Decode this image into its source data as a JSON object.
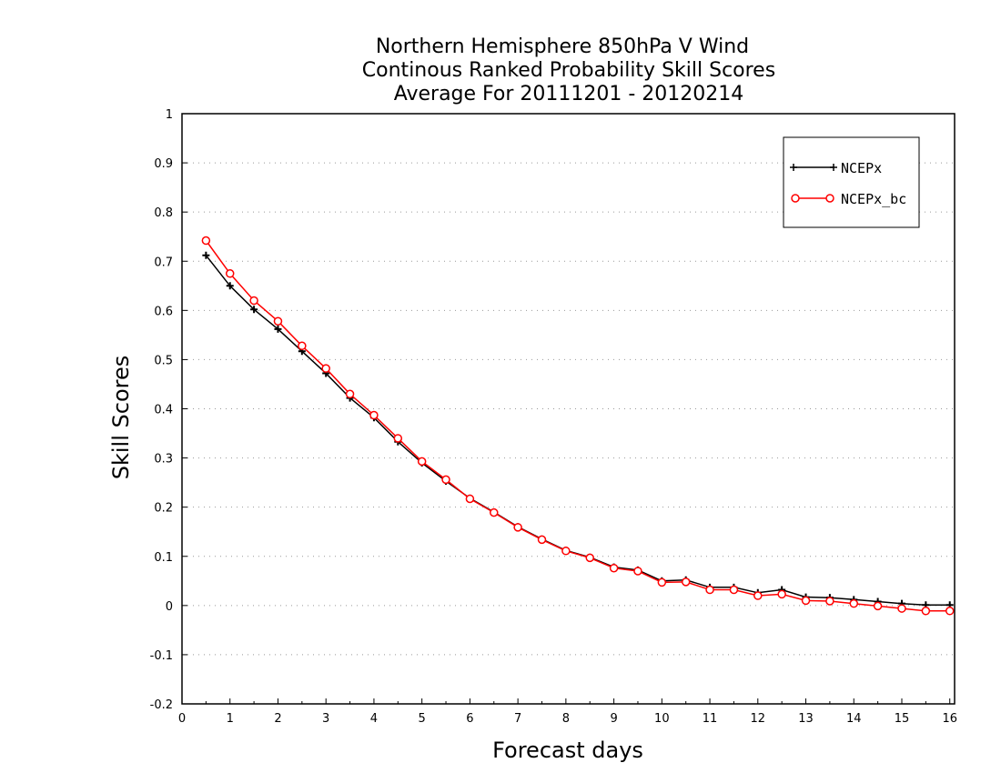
{
  "chart_data": {
    "type": "line",
    "title_lines": [
      "Northern Hemisphere 850hPa V Wind",
      "Continous Ranked Probability Skill Scores",
      "Average For 20111201 - 20120214"
    ],
    "xlabel": "Forecast days",
    "ylabel": "Skill Scores",
    "xlim": [
      0,
      16.1
    ],
    "ylim": [
      -0.2,
      1
    ],
    "x_ticks": [
      "0",
      "1",
      "2",
      "3",
      "4",
      "5",
      "6",
      "7",
      "8",
      "9",
      "10",
      "11",
      "12",
      "13",
      "14",
      "15",
      "16"
    ],
    "y_ticks": [
      "-0.2",
      "-0.1",
      "0",
      "0.1",
      "0.2",
      "0.3",
      "0.4",
      "0.5",
      "0.6",
      "0.7",
      "0.8",
      "0.9",
      "1"
    ],
    "grid": "horizontal dotted",
    "legend_position": "top-right",
    "x": [
      0.5,
      1,
      1.5,
      2,
      2.5,
      3,
      3.5,
      4,
      4.5,
      5,
      5.5,
      6,
      6.5,
      7,
      7.5,
      8,
      8.5,
      9,
      9.5,
      10,
      10.5,
      11,
      11.5,
      12,
      12.5,
      13,
      13.5,
      14,
      14.5,
      15,
      15.5,
      16
    ],
    "series": [
      {
        "name": "NCEPx",
        "color": "#000000",
        "marker": "plus",
        "values": [
          0.712,
          0.65,
          0.602,
          0.562,
          0.517,
          0.472,
          0.422,
          0.382,
          0.333,
          0.29,
          0.253,
          0.218,
          0.19,
          0.16,
          0.135,
          0.112,
          0.098,
          0.078,
          0.072,
          0.05,
          0.052,
          0.037,
          0.037,
          0.026,
          0.032,
          0.017,
          0.016,
          0.012,
          0.008,
          0.004,
          0.001,
          0.001
        ]
      },
      {
        "name": "NCEPx_bc",
        "color": "#ff0000",
        "marker": "circle",
        "values": [
          0.742,
          0.675,
          0.62,
          0.578,
          0.528,
          0.482,
          0.43,
          0.387,
          0.34,
          0.293,
          0.256,
          0.217,
          0.189,
          0.159,
          0.134,
          0.111,
          0.097,
          0.076,
          0.07,
          0.047,
          0.048,
          0.032,
          0.032,
          0.02,
          0.023,
          0.01,
          0.009,
          0.004,
          -0.001,
          -0.006,
          -0.011,
          -0.011
        ]
      }
    ]
  }
}
